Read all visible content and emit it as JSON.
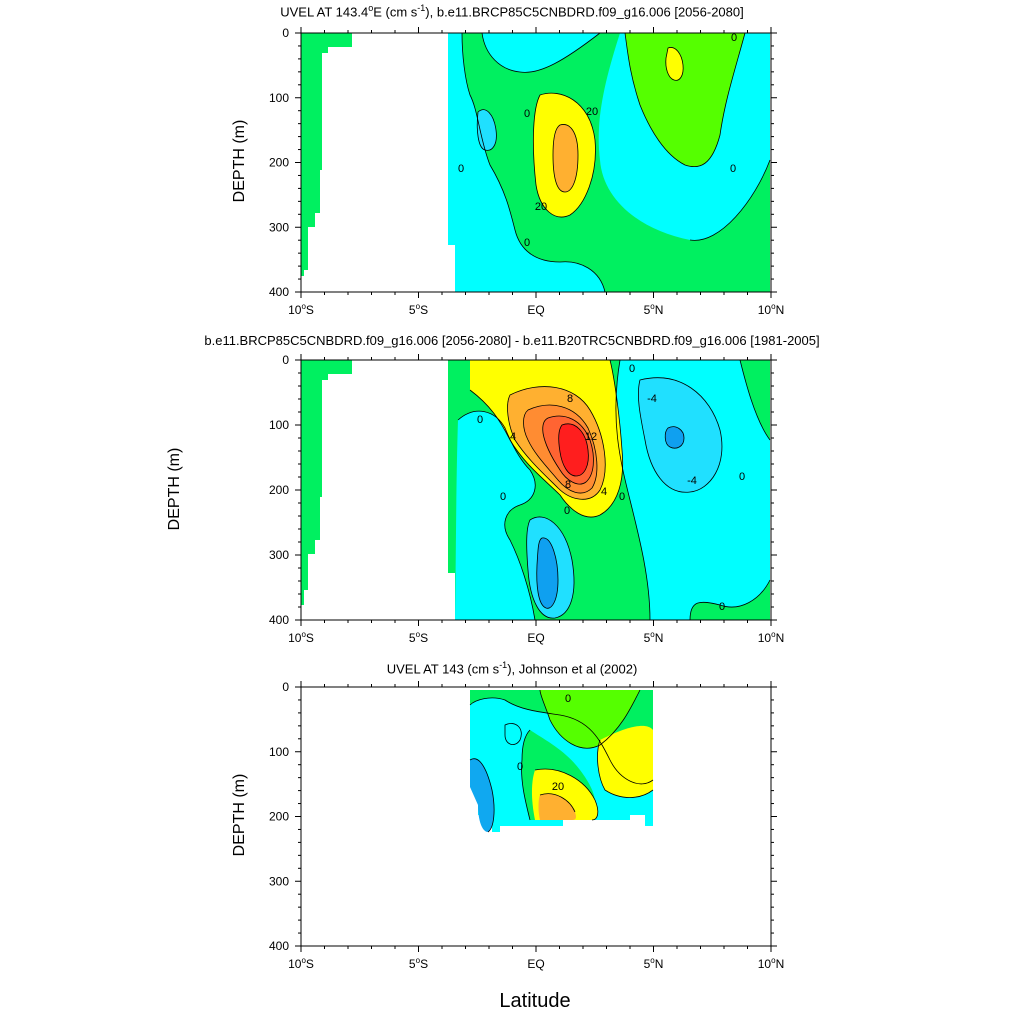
{
  "chart_data": [
    {
      "type": "contour",
      "title": "UVEL AT 143.4°E (cm s⁻¹), b.e11.BRCP85C5CNBDRD.f09_g16.006 [2056-2080]",
      "title_parts": {
        "pre": "UVEL AT 143.4",
        "deg": "o",
        "post1": "E (cm s",
        "sup": "-1",
        "post2": "), b.e11.BRCP85C5CNBDRD.f09_g16.006 [2056-2080]"
      },
      "ylabel": "DEPTH (m)",
      "xlim": [
        -10,
        10
      ],
      "ylim": [
        400,
        0
      ],
      "x_ticks": [
        -10,
        -5,
        0,
        5,
        10
      ],
      "x_tick_labels": [
        {
          "n": "10",
          "s": "S"
        },
        {
          "n": "5",
          "s": "S"
        },
        {
          "n": "EQ",
          "s": ""
        },
        {
          "n": "5",
          "s": "N"
        },
        {
          "n": "10",
          "s": "N"
        }
      ],
      "y_ticks": [
        0,
        100,
        200,
        300,
        400
      ],
      "contour_labels": [
        "0",
        "20",
        "0",
        "20",
        "0",
        "0",
        "0",
        "0"
      ],
      "colors": {
        "green": "#00f060",
        "lime": "#55ff00",
        "cyan": "#00ffff",
        "ltblue": "#20e0ff",
        "yellow": "#ffff00",
        "orange": "#ffb030"
      }
    },
    {
      "type": "contour",
      "title": "b.e11.BRCP85C5CNBDRD.f09_g16.006 [2056-2080] - b.e11.B20TRC5CNBDRD.f09_g16.006 [1981-2005]",
      "ylabel": "DEPTH (m)",
      "xlim": [
        -10,
        10
      ],
      "ylim": [
        400,
        0
      ],
      "x_ticks": [
        -10,
        -5,
        0,
        5,
        10
      ],
      "x_tick_labels": [
        {
          "n": "10",
          "s": "S"
        },
        {
          "n": "5",
          "s": "S"
        },
        {
          "n": "EQ",
          "s": ""
        },
        {
          "n": "5",
          "s": "N"
        },
        {
          "n": "10",
          "s": "N"
        }
      ],
      "y_ticks": [
        0,
        100,
        200,
        300,
        400
      ],
      "contour_labels": [
        "0",
        "4",
        "8",
        "12",
        "8",
        "4",
        "0",
        "0",
        "-4",
        "-4",
        "0",
        "0",
        "0",
        "0"
      ],
      "colors": {
        "red": "#ff1e1e",
        "orange": "#ff8c32",
        "yellow": "#ffff00",
        "blue": "#0fa0f0"
      }
    },
    {
      "type": "contour",
      "title": "UVEL AT 143 (cm s⁻¹), Johnson et al (2002)",
      "title_parts": {
        "pre": "UVEL AT 143 (cm s",
        "sup": "-1",
        "post": "), Johnson et al (2002)"
      },
      "ylabel": "DEPTH (m)",
      "xlim": [
        -10,
        10
      ],
      "ylim": [
        400,
        0
      ],
      "x_ticks": [
        -10,
        -5,
        0,
        5,
        10
      ],
      "x_tick_labels": [
        {
          "n": "10",
          "s": "S"
        },
        {
          "n": "5",
          "s": "S"
        },
        {
          "n": "EQ",
          "s": ""
        },
        {
          "n": "5",
          "s": "N"
        },
        {
          "n": "10",
          "s": "N"
        }
      ],
      "y_ticks": [
        0,
        100,
        200,
        300,
        400
      ],
      "contour_labels": [
        "0",
        "0",
        "20"
      ],
      "colors": {
        "blue": "#10a8f0",
        "yellow": "#ffff00",
        "orange": "#ffb030"
      }
    }
  ],
  "xlabel": "Latitude"
}
